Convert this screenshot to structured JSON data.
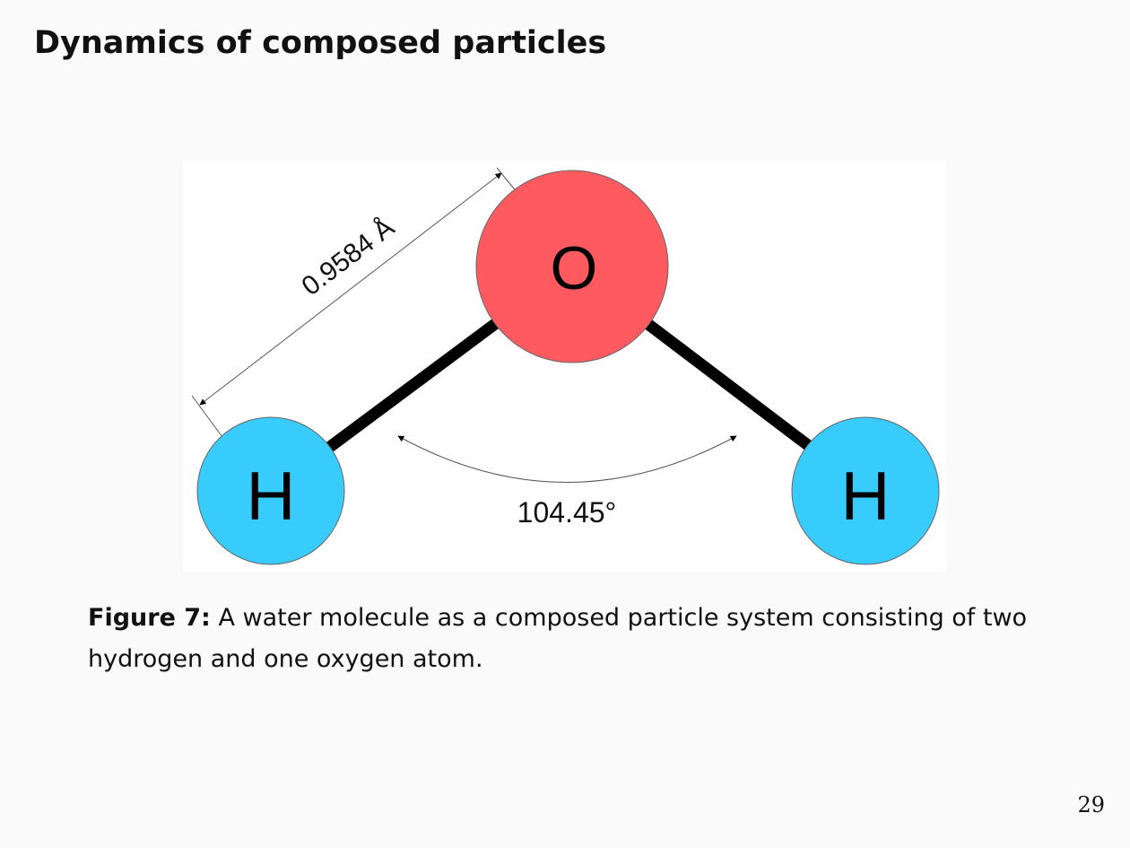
{
  "slide": {
    "title": "Dynamics of composed particles",
    "page_number": "29"
  },
  "figure": {
    "atoms": {
      "oxygen": "O",
      "hydrogen_left": "H",
      "hydrogen_right": "H"
    },
    "bond_length_label": "0.9584 Å",
    "bond_angle_label": "104.45°",
    "colors": {
      "oxygen": "#ff5a5f",
      "hydrogen": "#38ccfc",
      "bond": "#000000"
    }
  },
  "caption": {
    "label": "Figure 7:",
    "text": "A water molecule as a composed particle system consisting of two hydrogen and one oxygen atom."
  }
}
